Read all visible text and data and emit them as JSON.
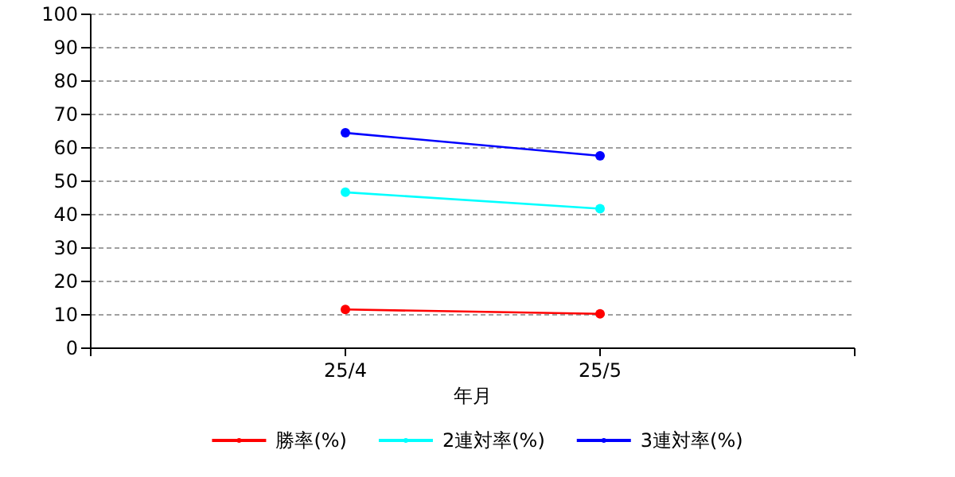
{
  "chart_data": {
    "type": "line",
    "xlabel": "年月",
    "categories": [
      "25/4",
      "25/5"
    ],
    "series": [
      {
        "name": "勝率(%)",
        "color": "#ff0000",
        "values": [
          11.6,
          10.3
        ]
      },
      {
        "name": "2連対率(%)",
        "color": "#00ffff",
        "values": [
          46.7,
          41.8
        ]
      },
      {
        "name": "3連対率(%)",
        "color": "#0000ff",
        "values": [
          64.5,
          57.6
        ]
      }
    ],
    "ylim": [
      0,
      100
    ],
    "yticks": [
      0,
      10,
      20,
      30,
      40,
      50,
      60,
      70,
      80,
      90,
      100
    ],
    "grid": "y",
    "legend": "bottom",
    "marker": "circle",
    "line_style": "solid"
  }
}
